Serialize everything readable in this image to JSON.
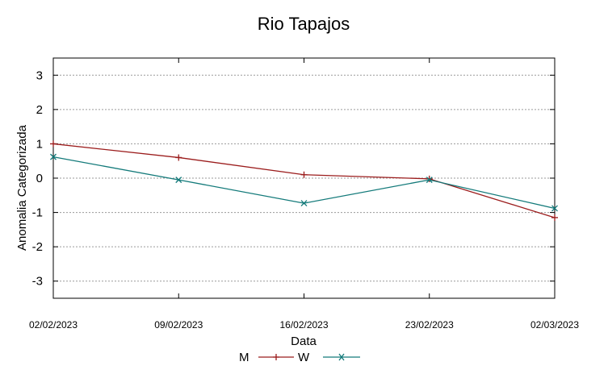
{
  "chart_data": {
    "type": "line",
    "title": "Rio Tapajos",
    "xlabel": "Data",
    "ylabel": "Anomalia Categorizada",
    "categories": [
      "02/02/2023",
      "09/02/2023",
      "16/02/2023",
      "23/02/2023",
      "02/03/2023"
    ],
    "yticks": [
      "3",
      "2",
      "1",
      "0",
      "-1",
      "-2",
      "-3"
    ],
    "ytick_values": [
      3,
      2,
      1,
      0,
      -1,
      -2,
      -3
    ],
    "ylim": [
      -3.5,
      3.5
    ],
    "grid": true,
    "legend_position": "bottom-center",
    "series": [
      {
        "name": "M",
        "color": "#9b1c1c",
        "marker": "plus",
        "values": [
          1.0,
          0.6,
          0.1,
          -0.02,
          -1.15
        ]
      },
      {
        "name": "W",
        "color": "#137a7a",
        "marker": "cross",
        "values": [
          0.62,
          -0.05,
          -0.73,
          -0.05,
          -0.88
        ]
      }
    ]
  }
}
